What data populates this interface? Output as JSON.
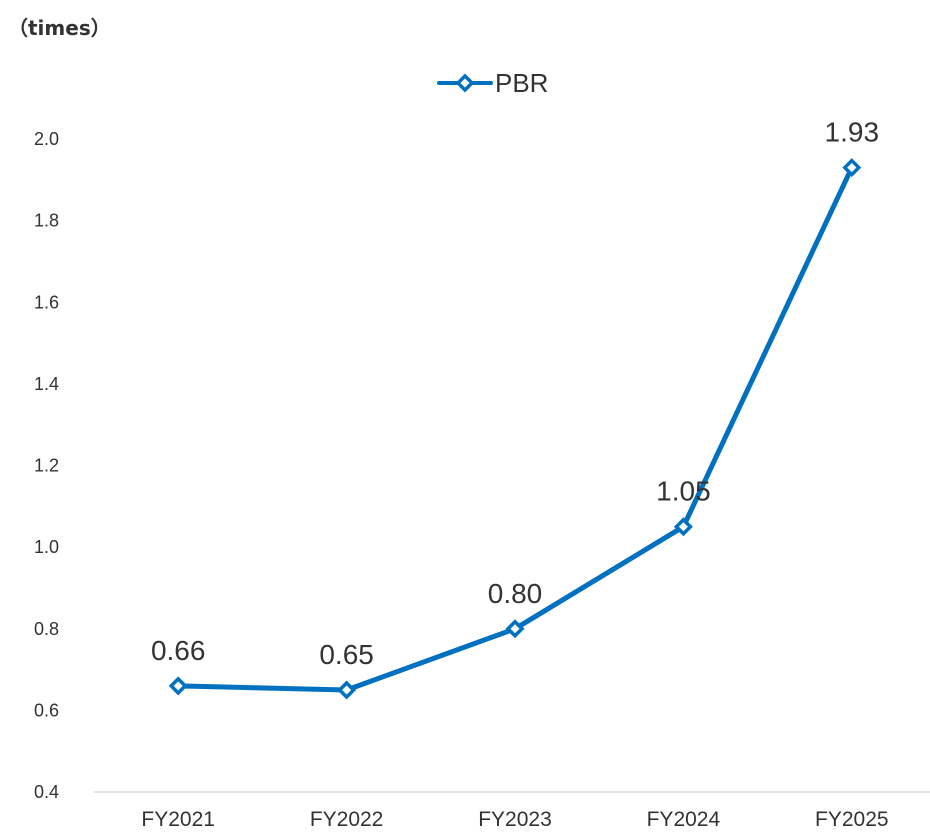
{
  "chart_data": {
    "type": "line",
    "unit_label": "（times）",
    "categories": [
      "FY2021",
      "FY2022",
      "FY2023",
      "FY2024",
      "FY2025"
    ],
    "series": [
      {
        "name": "PBR",
        "values": [
          0.66,
          0.65,
          0.8,
          1.05,
          1.93
        ],
        "data_labels": [
          "0.66",
          "0.65",
          "0.80",
          "1.05",
          "1.93"
        ]
      }
    ],
    "y_ticks": [
      "0.4",
      "0.6",
      "0.8",
      "1.0",
      "1.2",
      "1.4",
      "1.6",
      "1.8",
      "2.0"
    ],
    "ylim": [
      0.4,
      2.0
    ],
    "grid": false,
    "legend_position": "top-center",
    "colors": {
      "series": "#0070C0",
      "text": "#333333",
      "axis": "#D9D9D9"
    }
  }
}
